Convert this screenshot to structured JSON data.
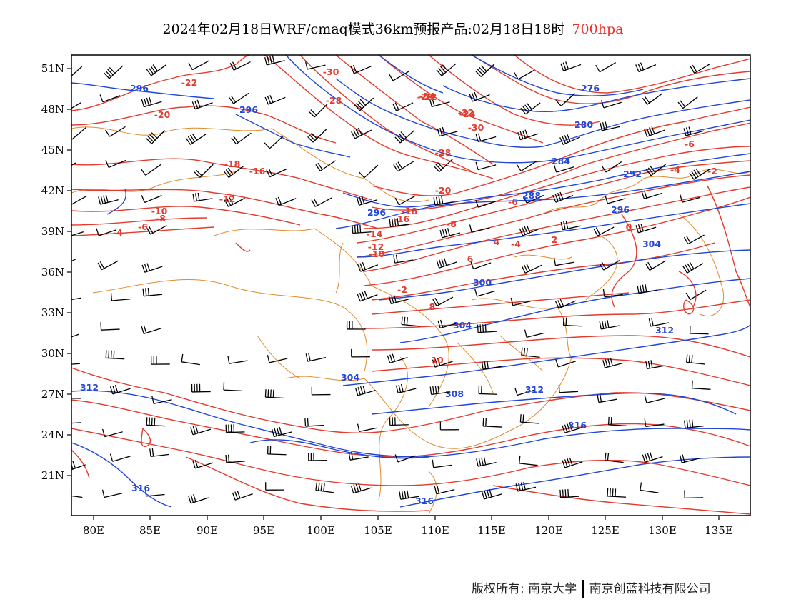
{
  "title": {
    "main": "2024年02月18日WRF/cmaq模式36km预报产品:02月18日18时",
    "level": "700hpa",
    "level_color": "#e8322c"
  },
  "axes": {
    "x_ticks": [
      "80E",
      "85E",
      "90E",
      "95E",
      "100E",
      "105E",
      "110E",
      "115E",
      "120E",
      "125E",
      "130E",
      "135E"
    ],
    "y_ticks": [
      "51N",
      "48N",
      "45N",
      "42N",
      "39N",
      "36N",
      "33N",
      "30N",
      "27N",
      "24N",
      "21N"
    ]
  },
  "colors": {
    "temperature_contour": "#e33b2e",
    "height_contour": "#2246d8",
    "boundary": "#e38a2c",
    "wind_barb": "#000000"
  },
  "temperature_labels": [
    "-22",
    "-20",
    "-18",
    "-16",
    "-12",
    "-10",
    "-8",
    "-6",
    "-4",
    "-30",
    "-28",
    "-26",
    "-24",
    "-22",
    "-34",
    "-32",
    "-30",
    "-28",
    "-20",
    "-18",
    "-16",
    "-14",
    "-12",
    "-10",
    "-8",
    "-6",
    "-4",
    "-2",
    "0",
    "2",
    "4",
    "6",
    "8",
    "10",
    "-6",
    "-4",
    "-2"
  ],
  "height_labels": [
    "296",
    "296",
    "276",
    "280",
    "284",
    "288",
    "292",
    "296",
    "296",
    "300",
    "304",
    "304",
    "308",
    "312",
    "312",
    "304",
    "312",
    "316",
    "316",
    "316"
  ],
  "footer": {
    "left": "版权所有: 南京大学",
    "right": "南京创蓝科技有限公司"
  }
}
